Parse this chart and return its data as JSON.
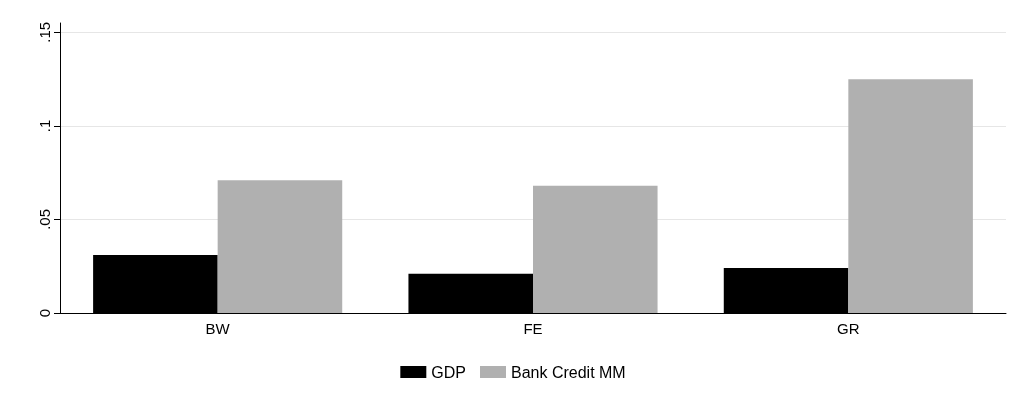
{
  "chart_data": {
    "type": "bar",
    "categories": [
      "BW",
      "FE",
      "GR"
    ],
    "series": [
      {
        "name": "GDP",
        "color": "#000000",
        "values": [
          0.031,
          0.021,
          0.024
        ]
      },
      {
        "name": "Bank Credit MM",
        "color": "#b0b0b0",
        "values": [
          0.071,
          0.068,
          0.125
        ]
      }
    ],
    "ylim": [
      0,
      0.155
    ],
    "yticks": [
      0,
      {
        "value": 0.05,
        "label": ".05"
      },
      {
        "value": 0.1,
        "label": ".1"
      },
      {
        "value": 0.15,
        "label": ".15"
      }
    ],
    "grid": "y",
    "legend": "bottom"
  }
}
